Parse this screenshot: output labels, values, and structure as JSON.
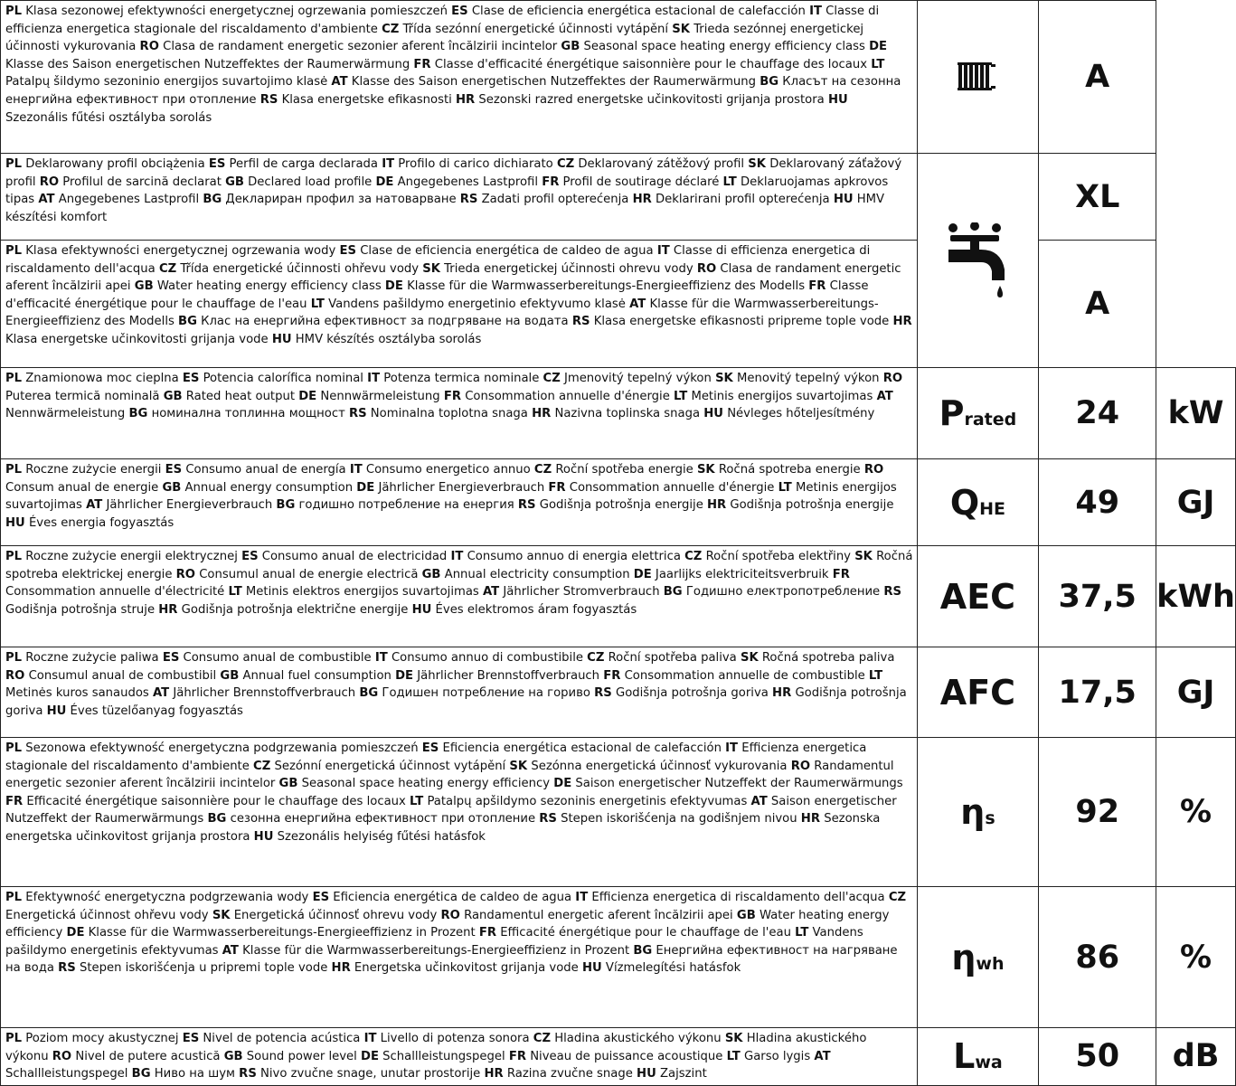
{
  "rows": [
    {
      "segments": [
        [
          "PL",
          "Klasa sezonowej efektywności energetycznej ogrzewania pomieszczeń"
        ],
        [
          "ES",
          "Clase de eficiencia energética estacional de calefacción"
        ],
        [
          "IT",
          "Classe di efficienza energetica stagionale del riscaldamento d'ambiente"
        ],
        [
          "CZ",
          "Třída sezónní energetické účinnosti vytápění"
        ],
        [
          "SK",
          "Trieda sezónnej energetickej účinnosti vykurovania"
        ],
        [
          "RO",
          "Clasa de randament energetic sezonier aferent încălzirii incintelor"
        ],
        [
          "GB",
          "Seasonal space heating energy efficiency class"
        ],
        [
          "DE",
          "Klasse des Saison energetischen Nutzeffektes der Raumerwärmung"
        ],
        [
          "FR",
          "Classe d'efficacité énergétique saisonnière pour le chauffage des locaux"
        ],
        [
          "LT",
          "Patalpų šildymo sezoninio energijos suvartojimo klasė"
        ],
        [
          "AT",
          "Klasse des Saison energetischen Nutzeffektes der Raumerwärmung"
        ],
        [
          "BG",
          "Класът на сезонна енергийна ефективност при отопление"
        ],
        [
          "RS",
          "Klasa energetske efikasnosti"
        ],
        [
          "HR",
          "Sezonski razred energetske učinkovitosti grijanja prostora"
        ],
        [
          "HU",
          "Szezonális fűtési osztályba sorolás"
        ]
      ],
      "value": "A",
      "icon": "radiator-icon"
    },
    {
      "segments": [
        [
          "PL",
          "Deklarowany profil obciążenia"
        ],
        [
          "ES",
          "Perfil de carga declarada"
        ],
        [
          "IT",
          "Profilo di carico dichiarato"
        ],
        [
          "CZ",
          "Deklarovaný zátěžový profil"
        ],
        [
          "SK",
          "Deklarovaný záťažový profil"
        ],
        [
          "RO",
          "Profilul de sarcină declarat"
        ],
        [
          "GB",
          "Declared load profile"
        ],
        [
          "DE",
          "Angegebenes Lastprofil"
        ],
        [
          "FR",
          "Profil de soutirage déclaré"
        ],
        [
          "LT",
          "Deklaruojamas apkrovos tipas"
        ],
        [
          "AT",
          "Angegebenes Lastprofil"
        ],
        [
          "BG",
          "Деклариран профил за натоварване"
        ],
        [
          "RS",
          "Zadati profil opterećenja"
        ],
        [
          "HR",
          "Deklarirani profil opterećenja"
        ],
        [
          "HU",
          "HMV készítési komfort"
        ]
      ],
      "value": "XL",
      "icon": "water-tap-icon"
    },
    {
      "segments": [
        [
          "PL",
          "Klasa efektywności energetycznej ogrzewania wody"
        ],
        [
          "ES",
          "Clase de eficiencia energética de caldeo de agua"
        ],
        [
          "IT",
          "Classe di efficienza energetica di riscaldamento dell'acqua"
        ],
        [
          "CZ",
          "Třída energetické účinnosti ohřevu vody"
        ],
        [
          "SK",
          "Trieda energetickej účinnosti ohrevu vody"
        ],
        [
          "RO",
          "Clasa de randament energetic aferent încălzirii apei"
        ],
        [
          "GB",
          "Water heating energy efficiency class"
        ],
        [
          "DE",
          "Klasse für die Warmwasserbereitungs-Energieeffizienz des Modells"
        ],
        [
          "FR",
          "Classe d'efficacité énergétique pour le chauffage de l'eau"
        ],
        [
          "LT",
          "Vandens pašildymo energetinio efektyvumo klasė"
        ],
        [
          "AT",
          "Klasse für die Warmwasserbereitungs-Energieeffizienz des Modells"
        ],
        [
          "BG",
          "Клас на енергийна ефективност за подгряване на водата"
        ],
        [
          "RS",
          "Klasa energetske efikasnosti pripreme tople vode"
        ],
        [
          "HR",
          "Klasa energetske učinkovitosti grijanja vode"
        ],
        [
          "HU",
          "HMV készítés osztályba sorolás"
        ]
      ],
      "value": "A"
    },
    {
      "segments": [
        [
          "PL",
          "Znamionowa moc cieplna"
        ],
        [
          "ES",
          "Potencia calorífica nominal"
        ],
        [
          "IT",
          "Potenza termica nominale"
        ],
        [
          "CZ",
          "Jmenovitý tepelný výkon"
        ],
        [
          "SK",
          "Menovitý tepelný výkon"
        ],
        [
          "RO",
          "Puterea termică nominală"
        ],
        [
          "GB",
          "Rated heat output"
        ],
        [
          "DE",
          "Nennwärmeleistung"
        ],
        [
          "FR",
          "Consommation annuelle d'énergie"
        ],
        [
          "LT",
          "Metinis energijos suvartojimas"
        ],
        [
          "AT",
          "Nennwärmeleistung"
        ],
        [
          "BG",
          "номинална топлинна мощност"
        ],
        [
          "RS",
          "Nominalna toplotna snaga"
        ],
        [
          "HR",
          "Nazivna toplinska snaga"
        ],
        [
          "HU",
          "Névleges hőteljesítmény"
        ]
      ],
      "symbol": {
        "main": "P",
        "sub": "rated"
      },
      "value": "24",
      "unit": "kW"
    },
    {
      "segments": [
        [
          "PL",
          "Roczne zużycie energii"
        ],
        [
          "ES",
          "Consumo anual de energía"
        ],
        [
          "IT",
          "Consumo energetico annuo"
        ],
        [
          "CZ",
          "Roční spotřeba energie"
        ],
        [
          "SK",
          "Ročná spotreba energie"
        ],
        [
          "RO",
          "Consum anual de energie"
        ],
        [
          "GB",
          "Annual energy consumption"
        ],
        [
          "DE",
          "Jährlicher Energieverbrauch"
        ],
        [
          "FR",
          "Consommation annuelle d'énergie"
        ],
        [
          "LT",
          "Metinis energijos suvartojimas"
        ],
        [
          "AT",
          "Jährlicher Energieverbrauch"
        ],
        [
          "BG",
          "годишно потребление на енергия"
        ],
        [
          "RS",
          "Godišnja potrošnja energije"
        ],
        [
          "HR",
          "Godišnja potrošnja energije"
        ],
        [
          "HU",
          "Éves energia fogyasztás"
        ]
      ],
      "symbol": {
        "main": "Q",
        "sub": "HE"
      },
      "value": "49",
      "unit": "GJ"
    },
    {
      "segments": [
        [
          "PL",
          "Roczne zużycie energii elektrycznej"
        ],
        [
          "ES",
          "Consumo anual de electricidad"
        ],
        [
          "IT",
          "Consumo annuo di energia elettrica"
        ],
        [
          "CZ",
          "Roční spotřeba elektřiny"
        ],
        [
          "SK",
          "Ročná spotreba elektrickej energie"
        ],
        [
          "RO",
          "Consumul anual de energie electrică"
        ],
        [
          "GB",
          "Annual electricity consumption"
        ],
        [
          "DE",
          "Jaarlijks elektriciteitsverbruik"
        ],
        [
          "FR",
          "Consommation annuelle d'électricité"
        ],
        [
          "LT",
          "Metinis elektros energijos suvartojimas"
        ],
        [
          "AT",
          "Jährlicher Stromverbrauch"
        ],
        [
          "BG",
          "Годишно електропотребление"
        ],
        [
          "RS",
          "Godišnja potrošnja struje"
        ],
        [
          "HR",
          "Godišnja potrošnja električne energije"
        ],
        [
          "HU",
          "Éves elektromos áram fogyasztás"
        ]
      ],
      "symbol": {
        "main": "AEC",
        "sub": ""
      },
      "value": "37,5",
      "unit": "kWh"
    },
    {
      "segments": [
        [
          "PL",
          "Roczne zużycie paliwa"
        ],
        [
          "ES",
          "Consumo anual de combustible"
        ],
        [
          "IT",
          "Consumo annuo di combustibile"
        ],
        [
          "CZ",
          "Roční spotřeba paliva"
        ],
        [
          "SK",
          "Ročná spotreba paliva"
        ],
        [
          "RO",
          "Consumul anual de combustibil"
        ],
        [
          "GB",
          "Annual fuel consumption"
        ],
        [
          "DE",
          "Jährlicher Brennstoffverbrauch"
        ],
        [
          "FR",
          "Consommation annuelle de combustible"
        ],
        [
          "LT",
          "Metinės kuros sanaudos"
        ],
        [
          "AT",
          "Jährlicher Brennstoffverbrauch"
        ],
        [
          "BG",
          "Годишен потребление на гориво"
        ],
        [
          "RS",
          "Godišnja potrošnja goriva"
        ],
        [
          "HR",
          "Godišnja potrošnja goriva"
        ],
        [
          "HU",
          "Éves tüzelőanyag fogyasztás"
        ]
      ],
      "symbol": {
        "main": "AFC",
        "sub": ""
      },
      "value": "17,5",
      "unit": "GJ"
    },
    {
      "segments": [
        [
          "PL",
          "Sezonowa efektywność energetyczna podgrzewania pomieszczeń"
        ],
        [
          "ES",
          "Eficiencia energética estacional de calefacción"
        ],
        [
          "IT",
          "Efficienza energetica stagionale del riscaldamento d'ambiente"
        ],
        [
          "CZ",
          "Sezónní energetická účinnost vytápění"
        ],
        [
          "SK",
          "Sezónna energetická účinnosť vykurovania"
        ],
        [
          "RO",
          "Randamentul energetic sezonier aferent încălzirii incintelor"
        ],
        [
          "GB",
          "Seasonal space heating energy efficiency"
        ],
        [
          "DE",
          "Saison energetischer Nutzeffekt der Raumerwärmungs"
        ],
        [
          "FR",
          "Efficacité énergétique saisonnière pour le chauffage des locaux"
        ],
        [
          "LT",
          "Patalpų apšildymo sezoninis energetinis efektyvumas"
        ],
        [
          "AT",
          "Saison energetischer Nutzeffekt der Raumerwärmungs"
        ],
        [
          "BG",
          "сезонна енергийна ефективност при отопление"
        ],
        [
          "RS",
          "Stepen iskorišćenja na godišnjem nivou"
        ],
        [
          "HR",
          "Sezonska energetska učinkovitost grijanja prostora"
        ],
        [
          "HU",
          "Szezonális helyiség fűtési hatásfok"
        ]
      ],
      "symbol": {
        "main": "η",
        "sub": "s"
      },
      "value": "92",
      "unit": "%"
    },
    {
      "segments": [
        [
          "PL",
          "Efektywność energetyczna podgrzewania wody"
        ],
        [
          "ES",
          "Eficiencia energética de caldeo de agua"
        ],
        [
          "IT",
          "Efficienza energetica di riscaldamento dell'acqua"
        ],
        [
          "CZ",
          "Energetická účinnost ohřevu vody"
        ],
        [
          "SK",
          "Energetická účinnosť ohrevu vody"
        ],
        [
          "RO",
          "Randamentul energetic aferent încălzirii apei"
        ],
        [
          "GB",
          "Water heating energy efficiency"
        ],
        [
          "DE",
          "Klasse für die Warmwasserbereitungs-Energieeffizienz in Prozent"
        ],
        [
          "FR",
          "Efficacité énergétique pour le chauffage de l'eau"
        ],
        [
          "LT",
          "Vandens pašildymo energetinis efektyvumas"
        ],
        [
          "AT",
          "Klasse für die Warmwasserbereitungs-Energieeffizienz in Prozent"
        ],
        [
          "BG",
          "Енергийна ефективност на нагряване на вода"
        ],
        [
          "RS",
          "Stepen iskorišćenja u pripremi tople vode"
        ],
        [
          "HR",
          "Energetska učinkovitost grijanja vode"
        ],
        [
          "HU",
          "Vízmelegítési hatásfok"
        ]
      ],
      "symbol": {
        "main": "η",
        "sub": "wh"
      },
      "value": "86",
      "unit": "%"
    },
    {
      "segments": [
        [
          "PL",
          "Poziom mocy akustycznej"
        ],
        [
          "ES",
          "Nivel de potencia acústica"
        ],
        [
          "IT",
          "Livello di potenza sonora"
        ],
        [
          "CZ",
          "Hladina akustického výkonu"
        ],
        [
          "SK",
          "Hladina akustického výkonu"
        ],
        [
          "RO",
          "Nivel de putere acustică"
        ],
        [
          "GB",
          "Sound power level"
        ],
        [
          "DE",
          "Schallleistungspegel"
        ],
        [
          "FR",
          "Niveau de puissance acoustique"
        ],
        [
          "LT",
          "Garso lygis"
        ],
        [
          "AT",
          "Schallleistungspegel"
        ],
        [
          "BG",
          "Ниво на шум"
        ],
        [
          "RS",
          "Nivo zvučne snage, unutar prostorije"
        ],
        [
          "HR",
          "Razina zvučne snage"
        ],
        [
          "HU",
          "Zajszint"
        ]
      ],
      "symbol": {
        "main": "L",
        "sub": "wa"
      },
      "value": "50",
      "unit": "dB"
    }
  ]
}
